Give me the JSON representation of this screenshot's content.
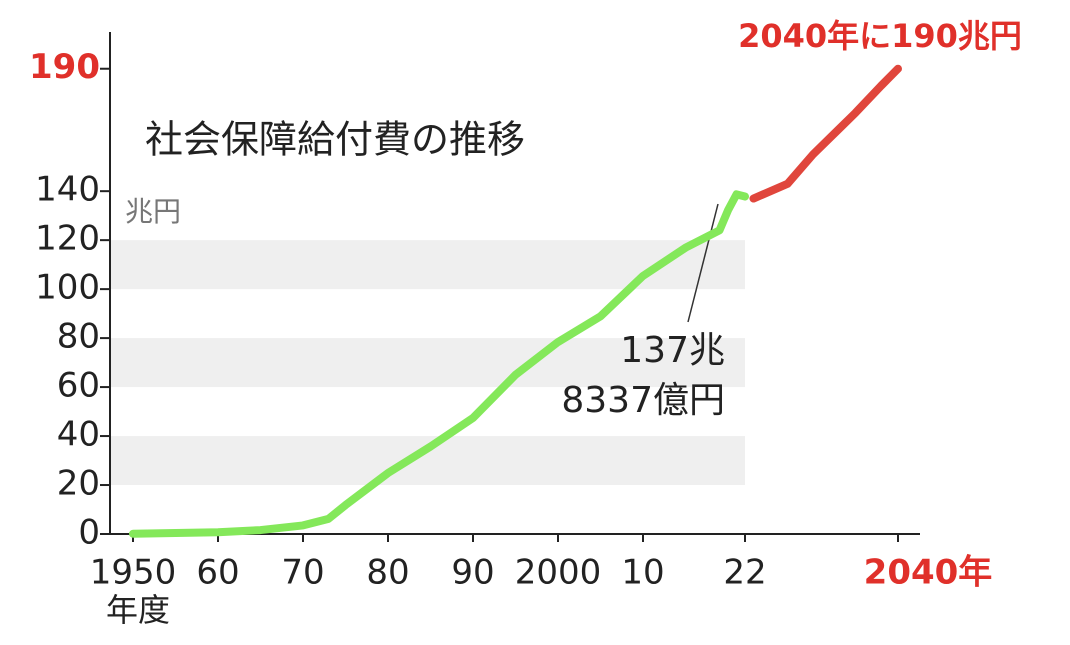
{
  "chart_data": {
    "type": "line",
    "title": "社会保障給付費の推移",
    "y_unit": "兆円",
    "x_axis_label": "年度",
    "headline": "2040年に190兆円",
    "callout": [
      "137兆",
      "8337億円"
    ],
    "series": [
      {
        "color": "#84e85a",
        "x": [
          1950,
          1955,
          1960,
          1965,
          1970,
          1973,
          1975,
          1980,
          1985,
          1990,
          1995,
          2000,
          2005,
          2010,
          2015,
          2019,
          2020,
          2021,
          2022
        ],
        "values": [
          0.1,
          0.4,
          0.7,
          1.6,
          3.5,
          6.2,
          11.8,
          24.9,
          35.7,
          47.4,
          65.0,
          78.4,
          88.9,
          105.4,
          116.9,
          124.0,
          132.2,
          138.7,
          137.8
        ]
      },
      {
        "color": "#e0463c",
        "x": [
          2023,
          2025,
          2027,
          2030,
          2035,
          2038,
          2040
        ],
        "values": [
          137,
          140,
          143,
          155,
          172,
          183,
          190
        ]
      }
    ],
    "xlim": [
      1947,
      2043
    ],
    "ylim": [
      0,
      205
    ],
    "xticks": [
      1950,
      {
        "value": 1960,
        "label": "60"
      },
      {
        "value": 1970,
        "label": "70"
      },
      {
        "value": 1980,
        "label": "80"
      },
      {
        "value": 1990,
        "label": "90"
      },
      2000,
      {
        "value": 2010,
        "label": "10"
      },
      {
        "value": 2022,
        "label": "22"
      },
      {
        "value": 2040,
        "label": "2040年"
      }
    ],
    "yticks": [
      0,
      20,
      40,
      60,
      80,
      100,
      120,
      140,
      190
    ],
    "grid": "bands",
    "highlight_color": "#e0302a"
  }
}
